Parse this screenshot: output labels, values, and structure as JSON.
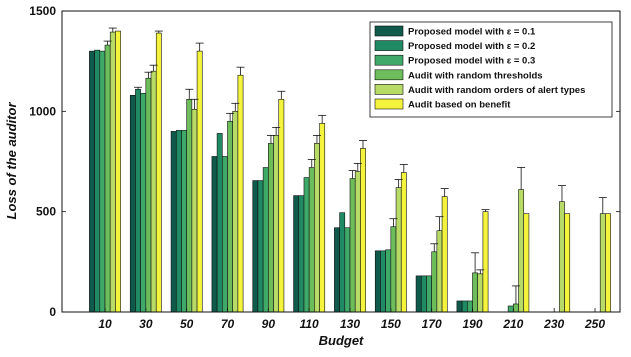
{
  "chart_data": {
    "type": "bar",
    "xlabel": "Budget",
    "ylabel": "Loss of the auditor",
    "ylim": [
      0,
      1500
    ],
    "yticks": [
      0,
      500,
      1000,
      1500
    ],
    "grid": false,
    "legend_position": "top-right",
    "categories": [
      "10",
      "30",
      "50",
      "70",
      "90",
      "110",
      "130",
      "150",
      "170",
      "190",
      "210",
      "230",
      "250"
    ],
    "series": [
      {
        "name": "Proposed model with ε = 0.1",
        "color": "#0f5a4a",
        "values": [
          1300,
          1080,
          900,
          775,
          655,
          580,
          420,
          305,
          180,
          55,
          0,
          0,
          0
        ],
        "errors": [
          0,
          0,
          0,
          0,
          0,
          0,
          0,
          0,
          0,
          0,
          0,
          0,
          0
        ]
      },
      {
        "name": "Proposed model with ε = 0.2",
        "color": "#1f8a63",
        "values": [
          1305,
          1110,
          905,
          890,
          655,
          580,
          495,
          305,
          180,
          55,
          0,
          0,
          0
        ],
        "errors": [
          0,
          10,
          0,
          0,
          0,
          0,
          0,
          0,
          0,
          0,
          0,
          0,
          0
        ]
      },
      {
        "name": "Proposed model with ε = 0.3",
        "color": "#3fa96a",
        "values": [
          1300,
          1090,
          905,
          775,
          720,
          670,
          420,
          310,
          180,
          55,
          30,
          0,
          0
        ],
        "errors": [
          0,
          0,
          0,
          0,
          0,
          0,
          0,
          0,
          0,
          0,
          0,
          0,
          0
        ]
      },
      {
        "name": "Audit with random thresholds",
        "color": "#6dbe5b",
        "values": [
          1330,
          1165,
          1060,
          950,
          840,
          720,
          665,
          425,
          300,
          195,
          40,
          0,
          0
        ],
        "errors": [
          20,
          30,
          50,
          40,
          40,
          40,
          40,
          40,
          40,
          100,
          90,
          0,
          0
        ]
      },
      {
        "name": "Audit with random orders of alert types",
        "color": "#b8db67",
        "values": [
          1395,
          1200,
          1010,
          1000,
          880,
          840,
          700,
          620,
          405,
          190,
          610,
          550,
          490
        ],
        "errors": [
          20,
          30,
          50,
          40,
          40,
          40,
          40,
          40,
          70,
          20,
          110,
          80,
          80
        ]
      },
      {
        "name": "Audit based on benefit",
        "color": "#f4f43c",
        "values": [
          1400,
          1390,
          1300,
          1180,
          1060,
          940,
          815,
          695,
          575,
          500,
          490,
          490,
          490
        ],
        "errors": [
          0,
          10,
          40,
          40,
          40,
          40,
          40,
          40,
          40,
          10,
          0,
          0,
          0
        ]
      }
    ]
  }
}
